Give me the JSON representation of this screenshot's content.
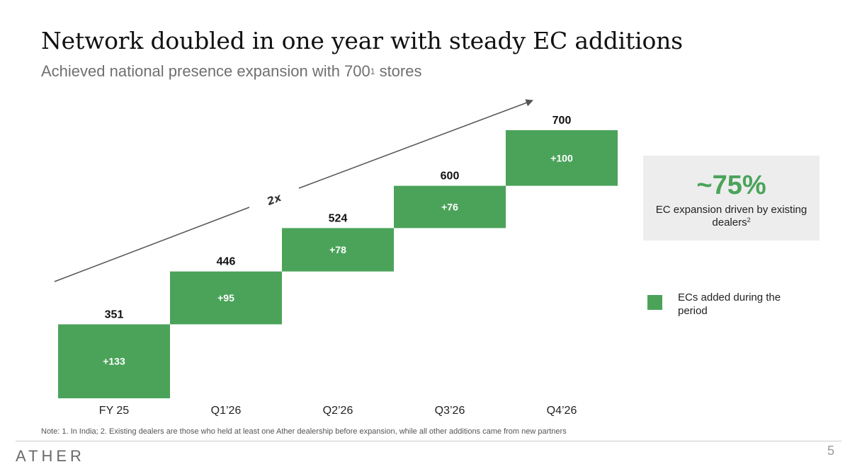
{
  "header": {
    "title": "Network doubled in one year with steady EC additions",
    "subtitle": "Achieved national presence expansion with 700",
    "subtitle_sup": "1",
    "subtitle_tail": " stores"
  },
  "chart_data": {
    "type": "bar",
    "subtype": "waterfall",
    "categories": [
      "FY 25",
      "Q1’26",
      "Q2’26",
      "Q3’26",
      "Q4’26"
    ],
    "totals": [
      351,
      446,
      524,
      600,
      700
    ],
    "increments": [
      133,
      95,
      78,
      76,
      100
    ],
    "increment_labels": [
      "+133",
      "+95",
      "+78",
      "+76",
      "+100"
    ],
    "bar_color": "#4ba35a",
    "arrow_annotation": "2x",
    "grid": false
  },
  "kpi": {
    "value": "~75%",
    "label": "EC expansion driven by existing dealers",
    "label_sup": "2"
  },
  "legend": {
    "label": "ECs added during the period",
    "color": "#4ba35a"
  },
  "footer": {
    "note": "Note: 1. In India; 2. Existing dealers are those who held at least one Ather dealership before expansion, while all other additions came from new partners",
    "logo": "ATHER",
    "page_number": "5"
  }
}
